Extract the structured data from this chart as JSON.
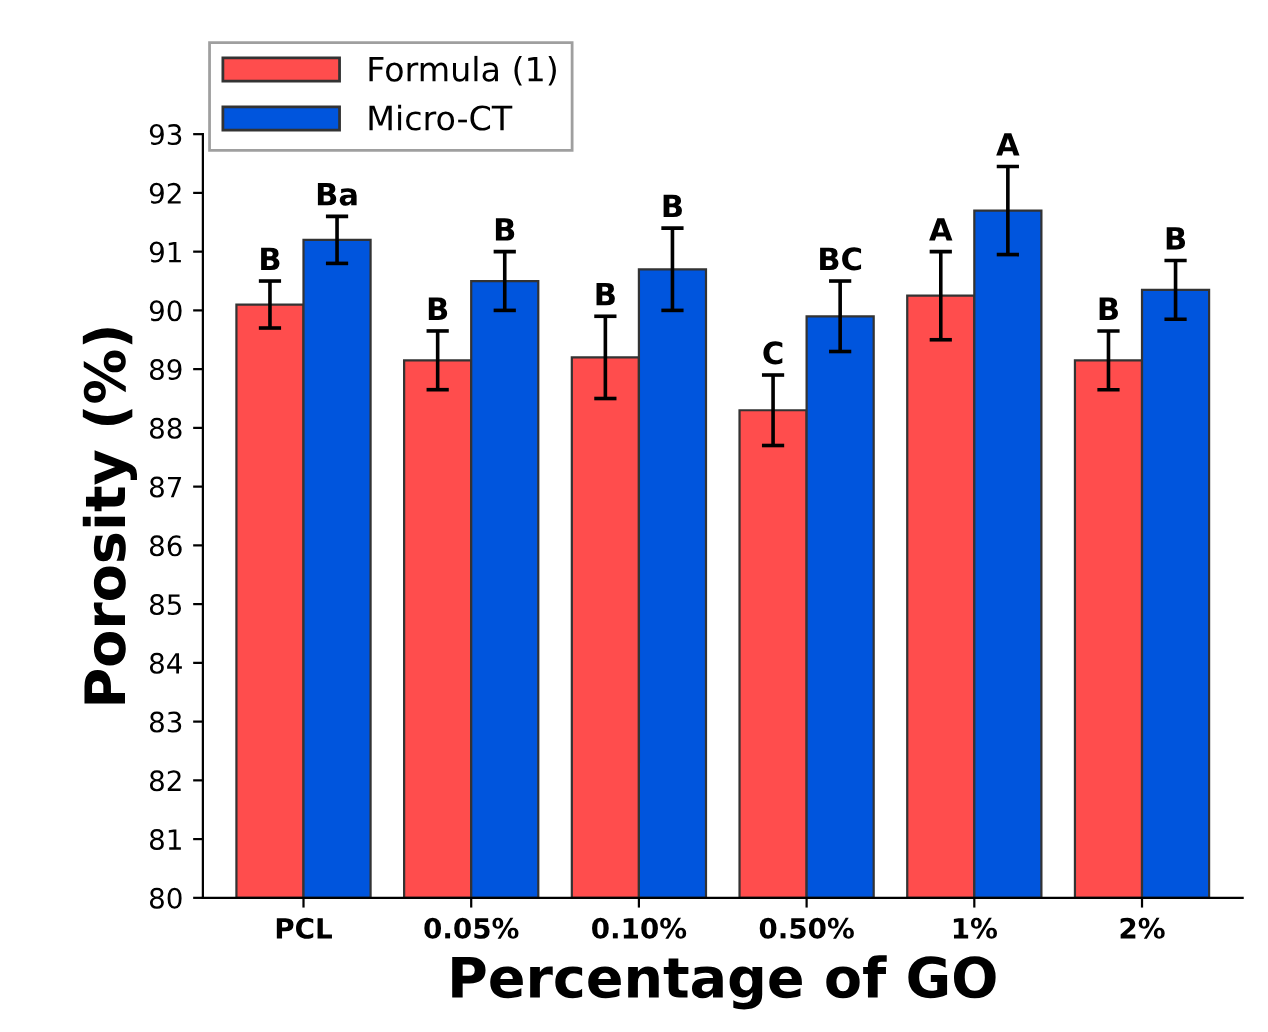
{
  "chart_data": {
    "type": "bar",
    "xlabel": "Percentage of GO",
    "ylabel": "Porosity (%)",
    "categories": [
      "PCL",
      "0.05%",
      "0.10%",
      "0.50%",
      "1%",
      "2%"
    ],
    "series": [
      {
        "name": "Formula (1)",
        "color": "#ff4d4d",
        "values": [
          90.1,
          89.15,
          89.2,
          88.3,
          90.25,
          89.15
        ],
        "errors": [
          0.4,
          0.5,
          0.7,
          0.6,
          0.75,
          0.5
        ],
        "value_labels": [
          "B",
          "B",
          "B",
          "C",
          "A",
          "B"
        ]
      },
      {
        "name": "Micro-CT",
        "color": "#0055dd",
        "values": [
          91.2,
          90.5,
          90.7,
          89.9,
          91.7,
          90.35
        ],
        "errors": [
          0.4,
          0.5,
          0.7,
          0.6,
          0.75,
          0.5
        ],
        "value_labels": [
          "Ba",
          "B",
          "B",
          "BC",
          "A",
          "B"
        ]
      }
    ],
    "ylim": [
      80,
      93
    ],
    "yticks": [
      80,
      81,
      82,
      83,
      84,
      85,
      86,
      87,
      88,
      89,
      90,
      91,
      92,
      93
    ],
    "grid": false,
    "legend": "top left"
  }
}
